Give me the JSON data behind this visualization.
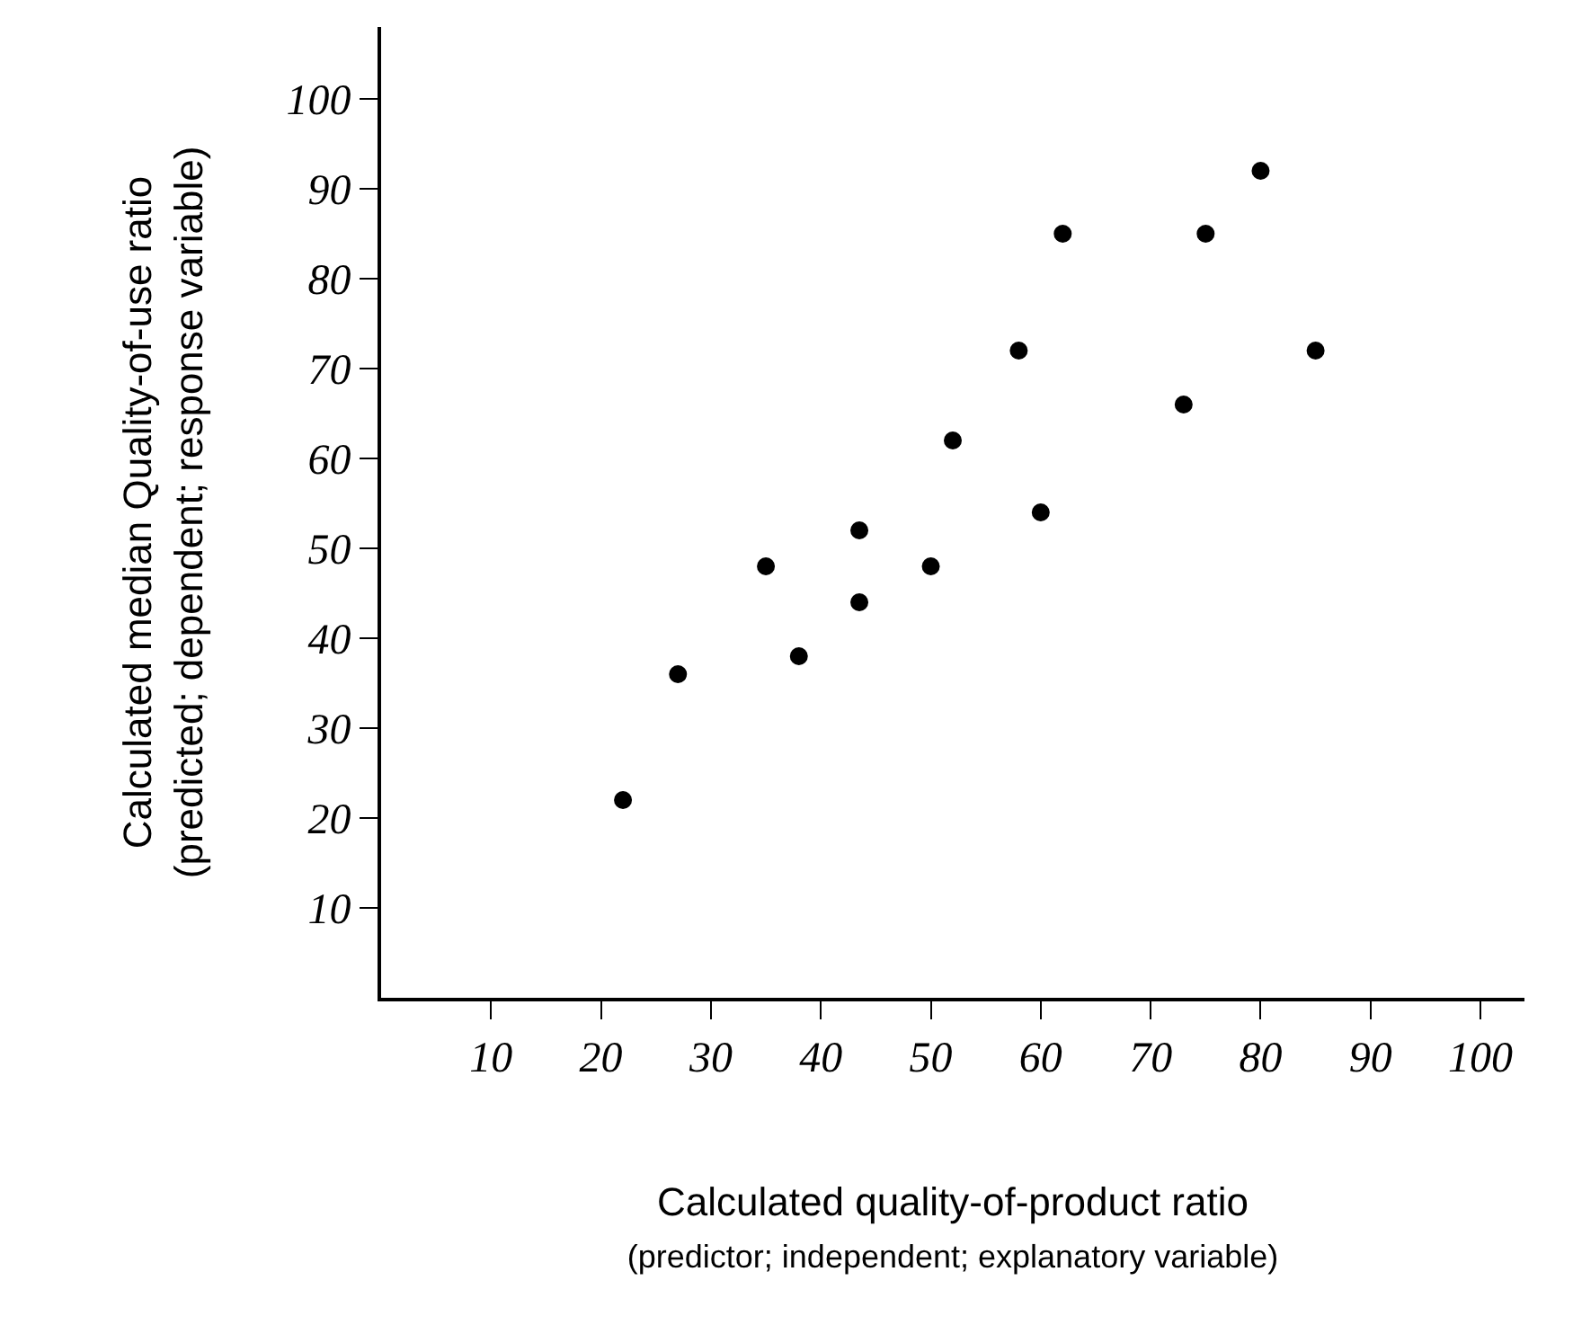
{
  "chart_data": {
    "type": "scatter",
    "xlabel": "Calculated quality-of-product ratio\n(predictor; independent; explanatory variable)",
    "ylabel": "Calculated median Quality-of-use ratio\n(predicted; dependent; response variable)",
    "x": [
      22,
      27,
      35,
      38,
      43.5,
      43.5,
      50,
      52,
      58,
      60,
      62,
      73,
      75,
      80,
      85
    ],
    "series": [
      {
        "color": "#000000",
        "values": [
          22,
          36,
          48,
          38,
          52,
          44,
          48,
          62,
          72,
          54,
          85,
          66,
          85,
          92,
          72
        ]
      }
    ],
    "xlim": [
      0,
      104
    ],
    "ylim": [
      0,
      108
    ],
    "xticks": [
      10,
      20,
      30,
      40,
      50,
      60,
      70,
      80,
      90,
      100
    ],
    "yticks": [
      10,
      20,
      30,
      40,
      50,
      60,
      70,
      80,
      90,
      100
    ],
    "marker": "circle",
    "legend": false
  }
}
